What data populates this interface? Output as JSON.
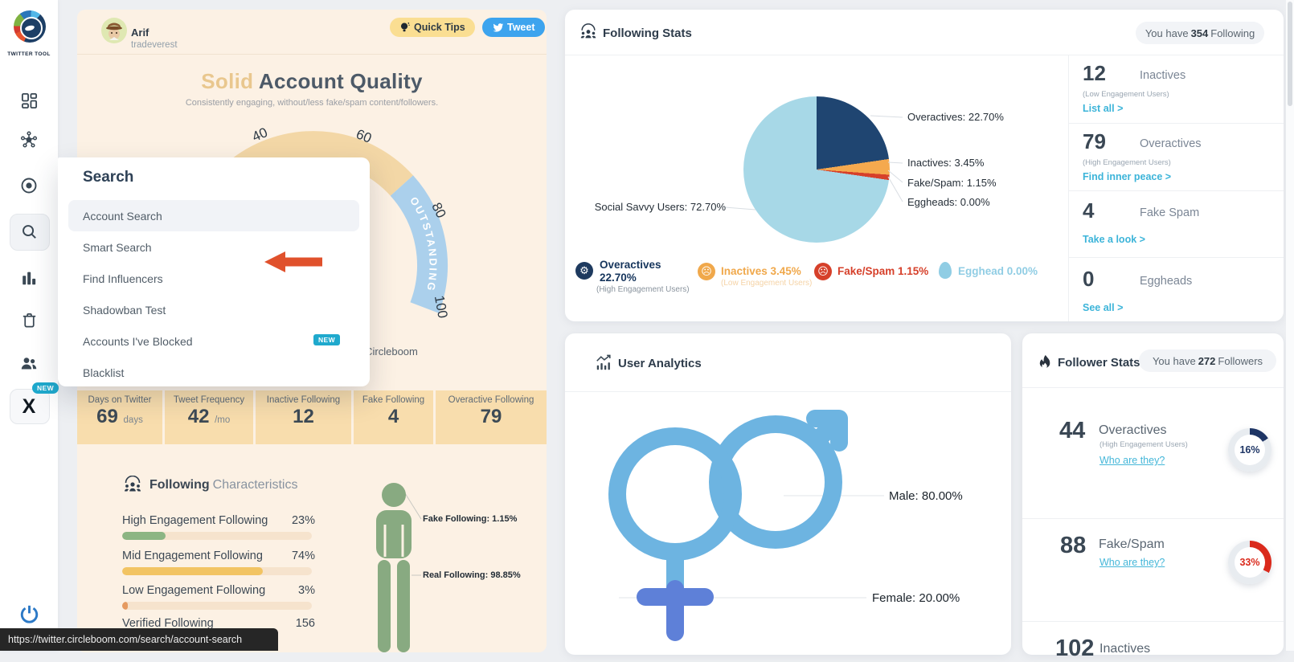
{
  "brand": {
    "logo_label": "TWITTER TOOL"
  },
  "sidebar": {
    "new_badge": "NEW"
  },
  "status_bar": {
    "url": "https://twitter.circleboom.com/search/account-search"
  },
  "search_menu": {
    "title": "Search",
    "items": [
      {
        "label": "Account Search"
      },
      {
        "label": "Smart Search"
      },
      {
        "label": "Find Influencers"
      },
      {
        "label": "Shadowban Test"
      },
      {
        "label": "Accounts I've Blocked",
        "badge": "NEW"
      },
      {
        "label": "Blacklist"
      }
    ]
  },
  "profile": {
    "name": "Arif",
    "handle": "tradeverest"
  },
  "header_buttons": {
    "quick_tips": "Quick Tips",
    "tweet": "Tweet"
  },
  "quality": {
    "title_accent": "Solid",
    "title_rest": " Account Quality",
    "subtitle": "Consistently engaging, without/less fake/spam content/followers.",
    "gauge": {
      "ticks": [
        "40",
        "60",
        "80",
        "100"
      ],
      "band_label": "OUTSTANDING"
    },
    "watermark": "y Circleboom",
    "stats": [
      {
        "label": "Days on Twitter",
        "value": "69",
        "unit": "days"
      },
      {
        "label": "Tweet Frequency",
        "value": "42",
        "unit": "/mo"
      },
      {
        "label": "Inactive Following",
        "value": "12",
        "unit": ""
      },
      {
        "label": "Fake Following",
        "value": "4",
        "unit": ""
      },
      {
        "label": "Overactive Following",
        "value": "79",
        "unit": ""
      }
    ]
  },
  "characteristics": {
    "title_accent": "Following",
    "title_rest": " Characteristics",
    "bars": [
      {
        "label": "High Engagement Following",
        "value": "23%",
        "pct": 23,
        "color": "#8cb583"
      },
      {
        "label": "Mid Engagement Following",
        "value": "74%",
        "pct": 74,
        "color": "#f2c463"
      },
      {
        "label": "Low Engagement Following",
        "value": "3%",
        "pct": 3,
        "color": "#e59a60"
      },
      {
        "label": "Verified Following",
        "value": "156"
      }
    ],
    "figure_callouts": {
      "fake": "Fake Following: 1.15%",
      "real": "Real Following: 98.85%"
    }
  },
  "following_stats": {
    "title": "Following Stats",
    "badge": {
      "prefix": "You have",
      "value": "354",
      "suffix": "Following"
    },
    "chart_data": {
      "type": "pie",
      "labels": [
        "Overactives",
        "Inactives",
        "Fake/Spam",
        "Eggheads",
        "Social Savvy Users"
      ],
      "values": [
        22.7,
        3.45,
        1.15,
        0.0,
        72.7
      ],
      "colors": [
        "#1f4571",
        "#f5a94e",
        "#d6402a",
        "#cfe9f2",
        "#a7d8e7"
      ],
      "callouts": [
        "Overactives: 22.70%",
        "Inactives: 3.45%",
        "Fake/Spam: 1.15%",
        "Eggheads: 0.00%",
        "Social Savvy Users: 72.70%"
      ]
    },
    "legend": [
      {
        "title": "Overactives",
        "value": "22.70%",
        "sub": "(High Engagement Users)",
        "color": "#16355c"
      },
      {
        "title": "Inactives 3.45%",
        "sub": "(Low Engagement Users)",
        "color": "#f0a84b"
      },
      {
        "title": "Fake/Spam 1.15%",
        "sub": "",
        "color": "#d6402a"
      },
      {
        "title": "Egghead 0.00%",
        "sub": "",
        "color": "#90cde4"
      }
    ],
    "list": [
      {
        "value": "12",
        "label": "Inactives",
        "sub": "(Low Engagement Users)",
        "link": "List all >"
      },
      {
        "value": "79",
        "label": "Overactives",
        "sub": "(High Engagement Users)",
        "link": "Find inner peace >"
      },
      {
        "value": "4",
        "label": "Fake Spam",
        "sub": "",
        "link": "Take a look >"
      },
      {
        "value": "0",
        "label": "Eggheads",
        "sub": "",
        "link": "See all >"
      }
    ]
  },
  "user_analytics": {
    "title": "User Analytics",
    "chart_data": {
      "type": "pie",
      "labels": [
        "Male",
        "Female"
      ],
      "values": [
        80.0,
        20.0
      ],
      "callouts": [
        "Male: 80.00%",
        "Female: 20.00%"
      ]
    }
  },
  "follower_stats": {
    "title": "Follower Stats",
    "badge": {
      "prefix": "You have",
      "value": "272",
      "suffix": "Followers"
    },
    "items": [
      {
        "value": "44",
        "label": "Overactives",
        "sub": "(High Engagement Users)",
        "link": "Who are they?",
        "pct_label": "16%",
        "pct": 16,
        "color": "#1e3565"
      },
      {
        "value": "88",
        "label": "Fake/Spam",
        "sub": "",
        "link": "Who are they?",
        "pct_label": "33%",
        "pct": 33,
        "color": "#da2a1c"
      },
      {
        "value": "102",
        "label": "Inactives"
      }
    ]
  }
}
